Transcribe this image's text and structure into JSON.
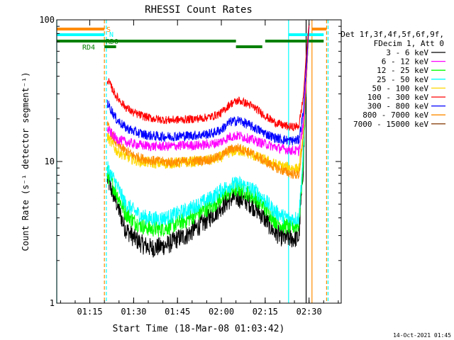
{
  "timestamp": "14-Oct-2021 01:45",
  "chart_data": {
    "type": "line",
    "title": "RHESSI Count Rates",
    "xlabel": "Start Time (18-Mar-08 01:03:42)",
    "ylabel": "Count Rate (s⁻¹ detector segment⁻¹)",
    "y_scale": "log",
    "ylim": [
      1,
      100
    ],
    "y_ticks": [
      {
        "value": 1,
        "label": "1"
      },
      {
        "value": 10,
        "label": "10"
      },
      {
        "value": 100,
        "label": "100"
      }
    ],
    "xlim": [
      "01:03:42",
      "02:41:00"
    ],
    "x_ticks": [
      "01:15",
      "01:30",
      "01:45",
      "02:00",
      "02:15",
      "02:30"
    ],
    "legend_header": [
      "Det 1f,3f,4f,5f,6f,9f,",
      "FDecim 1, Att 0"
    ],
    "legend_placement": "right",
    "series": [
      {
        "name": "3 - 6 keV",
        "color": "#000000",
        "points": [
          [
            "01:21:00",
            7.5
          ],
          [
            "01:24:00",
            5.2
          ],
          [
            "01:27:00",
            3.4
          ],
          [
            "01:30:00",
            2.9
          ],
          [
            "01:33:00",
            2.6
          ],
          [
            "01:36:00",
            2.45
          ],
          [
            "01:39:00",
            2.5
          ],
          [
            "01:42:00",
            2.6
          ],
          [
            "01:45:00",
            2.85
          ],
          [
            "01:48:00",
            3.0
          ],
          [
            "01:51:00",
            3.35
          ],
          [
            "01:54:00",
            3.7
          ],
          [
            "01:57:00",
            4.2
          ],
          [
            "02:00:00",
            4.8
          ],
          [
            "02:03:00",
            5.4
          ],
          [
            "02:05:00",
            5.6
          ],
          [
            "02:07:00",
            5.4
          ],
          [
            "02:09:00",
            5.2
          ],
          [
            "02:12:00",
            4.6
          ],
          [
            "02:15:00",
            3.9
          ],
          [
            "02:18:00",
            3.2
          ],
          [
            "02:21:00",
            2.9
          ],
          [
            "02:24:00",
            2.85
          ],
          [
            "02:26:30",
            2.9
          ],
          [
            "02:28:00",
            9.0
          ],
          [
            "02:29:00",
            35.0
          ],
          [
            "02:30:00",
            90.0
          ]
        ]
      },
      {
        "name": "6 - 12 keV",
        "color": "#ff00ff",
        "points": [
          [
            "01:21:00",
            17.0
          ],
          [
            "01:24:00",
            14.5
          ],
          [
            "01:27:00",
            13.8
          ],
          [
            "01:30:00",
            13.3
          ],
          [
            "01:33:00",
            13.0
          ],
          [
            "01:36:00",
            12.8
          ],
          [
            "01:39:00",
            12.8
          ],
          [
            "01:42:00",
            12.8
          ],
          [
            "01:45:00",
            12.9
          ],
          [
            "01:48:00",
            13.0
          ],
          [
            "01:51:00",
            13.0
          ],
          [
            "01:54:00",
            13.1
          ],
          [
            "01:57:00",
            13.3
          ],
          [
            "02:00:00",
            13.8
          ],
          [
            "02:03:00",
            15.0
          ],
          [
            "02:06:00",
            15.2
          ],
          [
            "02:09:00",
            14.6
          ],
          [
            "02:12:00",
            13.9
          ],
          [
            "02:15:00",
            13.3
          ],
          [
            "02:18:00",
            12.7
          ],
          [
            "02:21:00",
            12.3
          ],
          [
            "02:24:00",
            12.0
          ],
          [
            "02:26:30",
            11.8
          ],
          [
            "02:28:00",
            18.0
          ],
          [
            "02:29:00",
            40.0
          ],
          [
            "02:30:00",
            92.0
          ]
        ]
      },
      {
        "name": "12 - 25 keV",
        "color": "#00ff00",
        "points": [
          [
            "01:21:00",
            8.2
          ],
          [
            "01:24:00",
            6.1
          ],
          [
            "01:27:00",
            4.4
          ],
          [
            "01:30:00",
            3.8
          ],
          [
            "01:33:00",
            3.5
          ],
          [
            "01:36:00",
            3.35
          ],
          [
            "01:39:00",
            3.35
          ],
          [
            "01:42:00",
            3.45
          ],
          [
            "01:45:00",
            3.65
          ],
          [
            "01:48:00",
            3.85
          ],
          [
            "01:51:00",
            4.2
          ],
          [
            "01:54:00",
            4.5
          ],
          [
            "01:57:00",
            4.9
          ],
          [
            "02:00:00",
            5.5
          ],
          [
            "02:03:00",
            6.2
          ],
          [
            "02:06:00",
            6.4
          ],
          [
            "02:09:00",
            6.0
          ],
          [
            "02:12:00",
            5.5
          ],
          [
            "02:15:00",
            4.7
          ],
          [
            "02:18:00",
            3.9
          ],
          [
            "02:21:00",
            3.55
          ],
          [
            "02:24:00",
            3.45
          ],
          [
            "02:26:30",
            3.6
          ],
          [
            "02:28:00",
            10.0
          ],
          [
            "02:29:00",
            36.0
          ],
          [
            "02:30:00",
            88.0
          ]
        ]
      },
      {
        "name": "25 - 50 keV",
        "color": "#00ffff",
        "points": [
          [
            "01:21:00",
            9.0
          ],
          [
            "01:24:00",
            7.0
          ],
          [
            "01:27:00",
            5.1
          ],
          [
            "01:30:00",
            4.5
          ],
          [
            "01:33:00",
            4.1
          ],
          [
            "01:36:00",
            3.95
          ],
          [
            "01:39:00",
            3.95
          ],
          [
            "01:42:00",
            4.05
          ],
          [
            "01:45:00",
            4.3
          ],
          [
            "01:48:00",
            4.5
          ],
          [
            "01:51:00",
            4.85
          ],
          [
            "01:54:00",
            5.2
          ],
          [
            "01:57:00",
            5.6
          ],
          [
            "02:00:00",
            6.3
          ],
          [
            "02:03:00",
            6.8
          ],
          [
            "02:06:00",
            7.0
          ],
          [
            "02:09:00",
            6.6
          ],
          [
            "02:12:00",
            6.1
          ],
          [
            "02:15:00",
            5.3
          ],
          [
            "02:18:00",
            4.5
          ],
          [
            "02:21:00",
            4.1
          ],
          [
            "02:24:00",
            3.95
          ],
          [
            "02:26:30",
            4.0
          ],
          [
            "02:28:00",
            11.0
          ],
          [
            "02:29:00",
            37.0
          ],
          [
            "02:30:00",
            89.0
          ]
        ]
      },
      {
        "name": "50 - 100 keV",
        "color": "#ffd700",
        "points": [
          [
            "01:21:00",
            15.0
          ],
          [
            "01:24:00",
            12.0
          ],
          [
            "01:27:00",
            11.0
          ],
          [
            "01:30:00",
            10.3
          ],
          [
            "01:33:00",
            10.0
          ],
          [
            "01:36:00",
            9.8
          ],
          [
            "01:39:00",
            9.7
          ],
          [
            "01:42:00",
            9.7
          ],
          [
            "01:45:00",
            9.8
          ],
          [
            "01:48:00",
            9.9
          ],
          [
            "01:51:00",
            10.0
          ],
          [
            "01:54:00",
            10.1
          ],
          [
            "01:57:00",
            10.3
          ],
          [
            "02:00:00",
            10.8
          ],
          [
            "02:03:00",
            11.7
          ],
          [
            "02:06:00",
            12.0
          ],
          [
            "02:09:00",
            11.5
          ],
          [
            "02:12:00",
            10.8
          ],
          [
            "02:15:00",
            10.2
          ],
          [
            "02:18:00",
            9.6
          ],
          [
            "02:21:00",
            9.2
          ],
          [
            "02:24:00",
            9.0
          ],
          [
            "02:26:30",
            8.8
          ],
          [
            "02:28:00",
            15.0
          ],
          [
            "02:29:00",
            38.0
          ],
          [
            "02:30:00",
            90.0
          ]
        ]
      },
      {
        "name": "100 - 300 keV",
        "color": "#ff0000",
        "points": [
          [
            "01:21:00",
            38.0
          ],
          [
            "01:24:00",
            29.0
          ],
          [
            "01:27:00",
            24.5
          ],
          [
            "01:30:00",
            22.0
          ],
          [
            "01:33:00",
            21.0
          ],
          [
            "01:36:00",
            20.2
          ],
          [
            "01:39:00",
            19.8
          ],
          [
            "01:42:00",
            19.6
          ],
          [
            "01:45:00",
            19.7
          ],
          [
            "01:48:00",
            19.8
          ],
          [
            "01:51:00",
            20.0
          ],
          [
            "01:54:00",
            20.3
          ],
          [
            "01:57:00",
            20.8
          ],
          [
            "02:00:00",
            22.0
          ],
          [
            "02:03:00",
            25.5
          ],
          [
            "02:06:00",
            27.0
          ],
          [
            "02:09:00",
            25.5
          ],
          [
            "02:12:00",
            23.5
          ],
          [
            "02:15:00",
            21.0
          ],
          [
            "02:18:00",
            19.0
          ],
          [
            "02:21:00",
            18.0
          ],
          [
            "02:24:00",
            17.5
          ],
          [
            "02:26:30",
            17.8
          ],
          [
            "02:28:00",
            28.0
          ],
          [
            "02:29:00",
            55.0
          ],
          [
            "02:30:00",
            95.0
          ]
        ]
      },
      {
        "name": "300 - 800 keV",
        "color": "#0000ff",
        "points": [
          [
            "01:21:00",
            26.0
          ],
          [
            "01:24:00",
            20.0
          ],
          [
            "01:27:00",
            17.5
          ],
          [
            "01:30:00",
            16.3
          ],
          [
            "01:33:00",
            15.6
          ],
          [
            "01:36:00",
            15.2
          ],
          [
            "01:39:00",
            15.0
          ],
          [
            "01:42:00",
            15.0
          ],
          [
            "01:45:00",
            15.1
          ],
          [
            "01:48:00",
            15.2
          ],
          [
            "01:51:00",
            15.3
          ],
          [
            "01:54:00",
            15.5
          ],
          [
            "01:57:00",
            15.8
          ],
          [
            "02:00:00",
            16.8
          ],
          [
            "02:03:00",
            19.0
          ],
          [
            "02:06:00",
            19.5
          ],
          [
            "02:09:00",
            18.3
          ],
          [
            "02:12:00",
            17.0
          ],
          [
            "02:15:00",
            15.8
          ],
          [
            "02:18:00",
            14.8
          ],
          [
            "02:21:00",
            14.3
          ],
          [
            "02:24:00",
            14.0
          ],
          [
            "02:26:30",
            14.2
          ],
          [
            "02:28:00",
            22.0
          ],
          [
            "02:29:00",
            45.0
          ],
          [
            "02:30:00",
            93.0
          ]
        ]
      },
      {
        "name": "800 - 7000 keV",
        "color": "#ff8c00",
        "points": [
          [
            "01:21:00",
            18.0
          ],
          [
            "01:24:00",
            13.5
          ],
          [
            "01:27:00",
            12.0
          ],
          [
            "01:30:00",
            11.0
          ],
          [
            "01:33:00",
            10.5
          ],
          [
            "01:36:00",
            10.2
          ],
          [
            "01:39:00",
            10.0
          ],
          [
            "01:42:00",
            9.9
          ],
          [
            "01:45:00",
            9.9
          ],
          [
            "01:48:00",
            10.0
          ],
          [
            "01:51:00",
            10.1
          ],
          [
            "01:54:00",
            10.2
          ],
          [
            "01:57:00",
            10.4
          ],
          [
            "02:00:00",
            11.0
          ],
          [
            "02:03:00",
            12.2
          ],
          [
            "02:06:00",
            12.5
          ],
          [
            "02:09:00",
            11.8
          ],
          [
            "02:12:00",
            10.9
          ],
          [
            "02:15:00",
            10.0
          ],
          [
            "02:18:00",
            9.2
          ],
          [
            "02:21:00",
            8.6
          ],
          [
            "02:24:00",
            8.2
          ],
          [
            "02:26:30",
            8.0
          ],
          [
            "02:28:00",
            14.0
          ],
          [
            "02:29:00",
            35.0
          ],
          [
            "02:30:00",
            91.0
          ]
        ]
      },
      {
        "name": "7000 - 15000 keV",
        "color": "#8b4513",
        "points": []
      }
    ],
    "flags": [
      {
        "label": "S",
        "color": "#ff8c00",
        "segments": [
          [
            "01:03:42",
            "01:20:00"
          ],
          [
            "02:31:00",
            "02:36:00"
          ]
        ]
      },
      {
        "label": "N",
        "color": "#00ffff",
        "segments": [
          [
            "01:03:42",
            "01:20:00"
          ],
          [
            "02:23:00",
            "02:35:00"
          ]
        ]
      },
      {
        "label": "RD0",
        "color": "#008000",
        "segments": [
          [
            "01:03:42",
            "02:05:00"
          ],
          [
            "02:15:00",
            "02:35:00"
          ]
        ]
      },
      {
        "label": "RD4",
        "color": "#008000",
        "segments": [
          [
            "01:20:00",
            "01:24:00"
          ],
          [
            "02:05:00",
            "02:14:00"
          ]
        ]
      }
    ],
    "vlines": [
      {
        "t": "01:03:42",
        "color": "#00ffff",
        "style": "solid"
      },
      {
        "t": "01:20:00",
        "color": "#ff8c00",
        "style": "dashed"
      },
      {
        "t": "01:20:40",
        "color": "#00ffff",
        "style": "dashed"
      },
      {
        "t": "02:23:00",
        "color": "#00ffff",
        "style": "solid"
      },
      {
        "t": "02:29:00",
        "color": "#000000",
        "style": "solid"
      },
      {
        "t": "02:31:00",
        "color": "#ff8c00",
        "style": "solid"
      },
      {
        "t": "02:36:00",
        "color": "#ff8c00",
        "style": "dashed"
      },
      {
        "t": "02:36:30",
        "color": "#00ffff",
        "style": "dashed"
      }
    ]
  }
}
